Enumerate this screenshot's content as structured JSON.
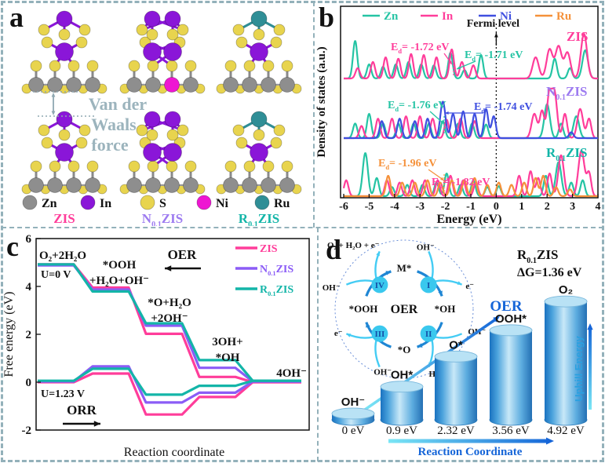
{
  "colors": {
    "dash_border": "#93b1ba",
    "atoms": {
      "Zn": "#8e8e8e",
      "In": "#8a16d8",
      "S": "#e8d44e",
      "Ni": "#ee16d2",
      "Ru": "#2f8e96"
    },
    "series": {
      "Zn": "#25c4a4",
      "In": "#ff3d9a",
      "Ni": "#3f4fe0",
      "Ru": "#f5913a"
    },
    "zis_pink": "#ff3d9a",
    "n_purple": "#9d7bf0",
    "n_purple_line": "#8b5cf6",
    "r_teal": "#13b5a8",
    "vdw_gray": "#9cb4bd",
    "blue_dark": "#1565d8",
    "cyan": "#55d4f2",
    "step_circle": "#3ac8ee",
    "roman_navy": "#1450a8"
  },
  "panel_a": {
    "letter": "a",
    "vdw_lines": [
      "Van der",
      "Waals",
      "force"
    ],
    "atom_legend": [
      {
        "symbol": "Zn"
      },
      {
        "symbol": "In"
      },
      {
        "symbol": "S"
      },
      {
        "symbol": "Ni"
      },
      {
        "symbol": "Ru"
      }
    ],
    "structures": [
      {
        "label": {
          "pre": "",
          "sub": "",
          "post": "ZIS"
        },
        "label_color": "#ff3d9a",
        "top": "In",
        "double": false,
        "ni": false
      },
      {
        "label": {
          "pre": "N",
          "sub": "0.1",
          "post": "ZIS"
        },
        "label_color": "#9d7bf0",
        "top": "In",
        "double": true,
        "ni": true
      },
      {
        "label": {
          "pre": "R",
          "sub": "0.1",
          "post": "ZIS"
        },
        "label_color": "#13b5a8",
        "top": "Ru",
        "double": false,
        "ni": false
      }
    ]
  },
  "chart_data": [
    {
      "id": "b",
      "panel_letter": "b",
      "type": "line",
      "kind": "density-of-states",
      "xlabel": "Energy (eV)",
      "ylabel": "Density of states (a.u.)",
      "xlim": [
        -6,
        4
      ],
      "xticks": [
        -6,
        -5,
        -4,
        -3,
        -2,
        -1,
        0,
        1,
        2,
        3,
        4
      ],
      "fermi_label": "Fermi level",
      "legend": [
        {
          "label": "Zn",
          "color": "#25c4a4"
        },
        {
          "label": "In",
          "color": "#ff3d9a"
        },
        {
          "label": "Ni",
          "color": "#3f4fe0"
        },
        {
          "label": "Ru",
          "color": "#f5913a"
        }
      ],
      "subpanels": [
        {
          "label": {
            "pre": "",
            "sub": "",
            "post": "ZIS"
          },
          "label_color": "#ff3d9a",
          "series": [
            {
              "name": "Zn",
              "color": "#25c4a4",
              "peaks": [
                [
                  -5.55,
                  0.8
                ],
                [
                  -5.0,
                  0.3
                ],
                [
                  -4.45,
                  0.25
                ],
                [
                  -3.95,
                  0.3
                ],
                [
                  -3.45,
                  0.35
                ],
                [
                  -2.95,
                  0.3
                ],
                [
                  -2.45,
                  0.28
                ],
                [
                  -1.8,
                  0.55
                ],
                [
                  -1.25,
                  0.18
                ],
                [
                  -0.6,
                  0.5
                ],
                [
                  2.3,
                  0.42
                ],
                [
                  2.9,
                  0.22
                ],
                [
                  3.5,
                  0.6,
                  0.11
                ]
              ]
            },
            {
              "name": "In",
              "color": "#ff3d9a",
              "peaks": [
                [
                  -5.45,
                  0.22
                ],
                [
                  -4.85,
                  0.35
                ],
                [
                  -4.35,
                  0.45
                ],
                [
                  -3.85,
                  0.42
                ],
                [
                  -3.35,
                  0.52
                ],
                [
                  -2.85,
                  0.5
                ],
                [
                  -2.35,
                  0.45
                ],
                [
                  -1.75,
                  0.62
                ],
                [
                  -1.35,
                  0.35
                ],
                [
                  -0.9,
                  0.28
                ],
                [
                  1.55,
                  0.45,
                  0.12
                ],
                [
                  2.1,
                  0.62,
                  0.12
                ],
                [
                  2.45,
                  0.68,
                  0.12
                ],
                [
                  2.8,
                  0.55,
                  0.12
                ],
                [
                  3.45,
                  0.95,
                  0.12
                ]
              ]
            }
          ],
          "annotations": [
            {
              "pre": "E",
              "sub": "d",
              "text": "= -1.72 eV",
              "color": "#ff3d9a"
            },
            {
              "pre": "E",
              "sub": "d",
              "text": "= -1.71 eV",
              "color": "#25c4a4"
            }
          ]
        },
        {
          "label": {
            "pre": "N",
            "sub": "0.1",
            "post": "ZIS"
          },
          "label_color": "#9d7bf0",
          "series": [
            {
              "name": "Zn",
              "color": "#25c4a4",
              "peaks": [
                [
                  -5.55,
                  0.3
                ],
                [
                  -5.0,
                  0.5
                ],
                [
                  -4.45,
                  0.3
                ],
                [
                  -3.85,
                  0.3
                ],
                [
                  -3.25,
                  0.3
                ],
                [
                  -2.65,
                  0.3
                ],
                [
                  -2.1,
                  0.35
                ],
                [
                  -1.5,
                  0.3
                ],
                [
                  -0.95,
                  0.3
                ],
                [
                  -0.4,
                  0.28
                ],
                [
                  2.0,
                  0.7,
                  0.11
                ],
                [
                  2.55,
                  0.3
                ],
                [
                  3.15,
                  0.45,
                  0.11
                ]
              ]
            },
            {
              "name": "In",
              "color": "#ff3d9a",
              "peaks": [
                [
                  -5.3,
                  0.25
                ],
                [
                  -4.65,
                  0.4
                ],
                [
                  -4.1,
                  0.4
                ],
                [
                  -3.55,
                  0.45
                ],
                [
                  -3.0,
                  0.45
                ],
                [
                  -2.5,
                  0.4
                ],
                [
                  -1.95,
                  0.38
                ],
                [
                  -1.4,
                  0.4
                ],
                [
                  -0.85,
                  0.35
                ],
                [
                  1.5,
                  0.5,
                  0.11
                ],
                [
                  1.8,
                  0.55
                ],
                [
                  2.1,
                  0.95,
                  0.1
                ],
                [
                  2.3,
                  0.85,
                  0.1
                ],
                [
                  2.7,
                  0.5
                ],
                [
                  3.3,
                  0.6,
                  0.11
                ],
                [
                  3.65,
                  0.4
                ]
              ]
            },
            {
              "name": "Ni",
              "color": "#3f4fe0",
              "peaks": [
                [
                  -4.5,
                  0.35
                ],
                [
                  -3.8,
                  0.4
                ],
                [
                  -3.2,
                  0.35
                ],
                [
                  -2.7,
                  0.4
                ],
                [
                  -2.1,
                  0.75,
                  0.1
                ],
                [
                  -1.7,
                  0.5
                ],
                [
                  -1.3,
                  0.55
                ],
                [
                  -0.85,
                  0.5
                ],
                [
                  -0.4,
                  0.6
                ],
                [
                  -0.1,
                  0.45
                ],
                [
                  2.95,
                  0.12
                ]
              ]
            }
          ],
          "annotations": [
            {
              "pre": "E",
              "sub": "d",
              "text": "= -1.76 eV",
              "color": "#25c4a4"
            },
            {
              "pre": "E",
              "sub": "d",
              "text": "= -1.74 eV",
              "color": "#3f4fe0"
            }
          ]
        },
        {
          "label": {
            "pre": "R",
            "sub": "0.1",
            "post": "ZIS"
          },
          "label_color": "#13b5a8",
          "series": [
            {
              "name": "Zn",
              "color": "#25c4a4",
              "peaks": [
                [
                  -5.15,
                  0.95,
                  0.1
                ],
                [
                  -4.7,
                  0.4
                ],
                [
                  -4.1,
                  0.2
                ],
                [
                  -3.5,
                  0.25
                ],
                [
                  -2.9,
                  0.25
                ],
                [
                  -2.35,
                  0.3
                ],
                [
                  -1.95,
                  0.5
                ],
                [
                  -1.4,
                  0.25
                ],
                [
                  -0.9,
                  0.35
                ],
                [
                  -0.35,
                  0.2
                ],
                [
                  0.1,
                  0.22
                ],
                [
                  1.95,
                  0.45
                ],
                [
                  2.45,
                  0.75,
                  0.11
                ],
                [
                  2.95,
                  0.3
                ],
                [
                  3.4,
                  0.35
                ]
              ]
            },
            {
              "name": "In",
              "color": "#ff3d9a",
              "peaks": [
                [
                  -5.9,
                  0.35
                ],
                [
                  -4.3,
                  0.35
                ],
                [
                  -3.8,
                  0.3
                ],
                [
                  -3.3,
                  0.35
                ],
                [
                  -2.8,
                  0.35
                ],
                [
                  -2.3,
                  0.35
                ],
                [
                  -1.8,
                  0.45
                ],
                [
                  -1.3,
                  0.35
                ],
                [
                  -0.8,
                  0.3
                ],
                [
                  0.9,
                  0.45
                ],
                [
                  1.35,
                  0.55
                ],
                [
                  1.65,
                  0.4
                ],
                [
                  2.1,
                  0.5
                ],
                [
                  2.55,
                  0.9,
                  0.11
                ],
                [
                  3.35,
                  1.0,
                  0.12
                ],
                [
                  3.65,
                  0.5
                ]
              ]
            },
            {
              "name": "Ru",
              "color": "#f5913a",
              "peaks": [
                [
                  -4.25,
                  0.45
                ],
                [
                  -3.7,
                  0.3
                ],
                [
                  -3.2,
                  0.3
                ],
                [
                  -2.7,
                  0.35
                ],
                [
                  -2.2,
                  0.3
                ],
                [
                  -1.75,
                  0.35
                ],
                [
                  -1.25,
                  0.35
                ],
                [
                  -0.85,
                  0.4
                ],
                [
                  -0.35,
                  0.25
                ],
                [
                  0.1,
                  0.3
                ],
                [
                  0.6,
                  0.25
                ],
                [
                  1.1,
                  0.3
                ],
                [
                  1.55,
                  0.4
                ],
                [
                  1.85,
                  0.45
                ],
                [
                  2.35,
                  0.2
                ],
                [
                  2.9,
                  0.15
                ]
              ]
            }
          ],
          "annotations": [
            {
              "pre": "E",
              "sub": "d",
              "text": "= -1.96 eV",
              "color": "#f5913a"
            },
            {
              "pre": "E",
              "sub": "d",
              "text": "= -1.82 eV",
              "color": "#ff3d9a"
            }
          ]
        }
      ]
    },
    {
      "id": "c",
      "panel_letter": "c",
      "type": "line",
      "kind": "free-energy-steps",
      "xlabel": "Reaction coordinate",
      "ylabel": "Free energy (eV)",
      "ylim": [
        -2,
        6
      ],
      "yticks": [
        -2,
        0,
        2,
        4,
        6
      ],
      "legend": [
        {
          "label": {
            "pre": "",
            "sub": "",
            "post": "ZIS"
          },
          "color": "#ff3d9a"
        },
        {
          "label": {
            "pre": "N",
            "sub": "0.1",
            "post": "ZIS"
          },
          "color": "#8b5cf6"
        },
        {
          "label": {
            "pre": "R",
            "sub": "0.1",
            "post": "ZIS"
          },
          "color": "#13b5a8"
        }
      ],
      "series": [
        {
          "name": "ZIS",
          "color": "#ff3d9a",
          "U0": [
            4.92,
            3.95,
            2.02,
            0.22,
            0.0
          ],
          "U123": [
            0.0,
            0.36,
            -1.35,
            -0.62,
            0.0
          ]
        },
        {
          "name": "N0.1ZIS",
          "color": "#8b5cf6",
          "U0": [
            4.88,
            3.87,
            2.36,
            0.6,
            0.03
          ],
          "U123": [
            0.03,
            0.66,
            -0.85,
            -0.44,
            0.03
          ]
        },
        {
          "name": "R0.1ZIS",
          "color": "#13b5a8",
          "U0": [
            4.92,
            3.79,
            2.46,
            0.92,
            0.06
          ],
          "U123": [
            0.06,
            0.56,
            -0.52,
            -0.15,
            0.06
          ]
        }
      ],
      "annotations": {
        "start": "O₂+2H₂O",
        "u0": "U=0 V",
        "u123": "U=1.23 V",
        "oer": "OER",
        "orr": "ORR",
        "step2": [
          "*OOH",
          "+H₂O+OH⁻"
        ],
        "step3": [
          "*O+H₂O",
          "+2OH⁻"
        ],
        "step4": [
          "3OH+",
          "*OH"
        ],
        "end": "4OH⁻"
      }
    },
    {
      "id": "d",
      "panel_letter": "d",
      "type": "bar",
      "kind": "energy-cylinders",
      "title": {
        "pre": "R",
        "sub": "0.1",
        "post": "ZIS"
      },
      "dg_label": "ΔG=1.36 eV",
      "categories": [
        "OH⁻",
        "OH*",
        "O*",
        "OOH*",
        "O₂"
      ],
      "values": [
        0,
        0.9,
        2.32,
        3.56,
        4.92
      ],
      "value_labels": [
        "0 eV",
        "0.9 eV",
        "2.32 eV",
        "3.56 eV",
        "4.92 eV"
      ],
      "xlabel": "Reaction Coordinate",
      "oer_label": "OER",
      "uphill_label": "Uphill Energy",
      "cycle": {
        "center": "OER",
        "nodes": [
          "M*",
          "*OH",
          "*O",
          "*OOH"
        ],
        "steps": [
          "I",
          "II",
          "III",
          "IV"
        ],
        "in_labels": [
          "OH⁻",
          "OH⁻",
          "OH⁻",
          "OH⁻"
        ],
        "out_labels": [
          "e⁻",
          "H₂O + e⁻",
          "e⁻",
          "O₂ + H₂O + e⁻"
        ]
      }
    }
  ]
}
